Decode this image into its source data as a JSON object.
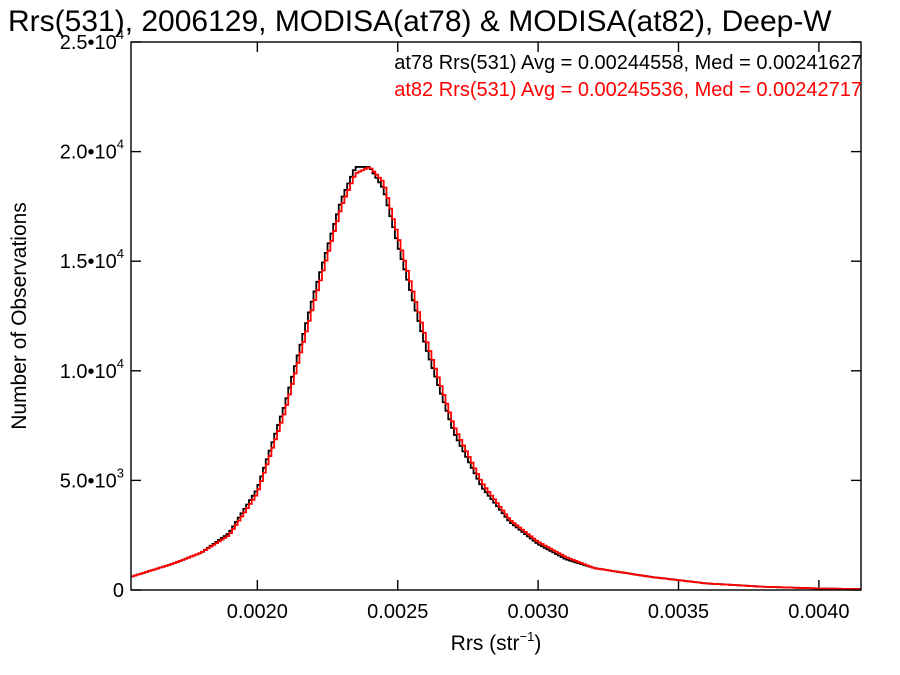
{
  "chart_data": {
    "type": "line",
    "title": "Rrs(531), 2006129, MODISA(at78) & MODISA(at82), Deep-W",
    "xlabel": {
      "main": "Rrs (str",
      "sup": "−1",
      "close": ")"
    },
    "ylabel": "Number of Observations",
    "xlim": [
      0.00155,
      0.00415
    ],
    "ylim": [
      0,
      25000
    ],
    "x_ticks": [
      {
        "value": 0.002,
        "label": "0.0020"
      },
      {
        "value": 0.0025,
        "label": "0.0025"
      },
      {
        "value": 0.003,
        "label": "0.0030"
      },
      {
        "value": 0.0035,
        "label": "0.0035"
      },
      {
        "value": 0.004,
        "label": "0.0040"
      }
    ],
    "y_ticks": [
      {
        "value": 0,
        "mantissa": "0",
        "exponent": ""
      },
      {
        "value": 5000,
        "mantissa": "5.0•10",
        "exponent": "3"
      },
      {
        "value": 10000,
        "mantissa": "1.0•10",
        "exponent": "4"
      },
      {
        "value": 15000,
        "mantissa": "1.5•10",
        "exponent": "4"
      },
      {
        "value": 20000,
        "mantissa": "2.0•10",
        "exponent": "4"
      },
      {
        "value": 25000,
        "mantissa": "2.5•10",
        "exponent": "4"
      }
    ],
    "grid": false,
    "legend_position": "top-right",
    "series": [
      {
        "name": "at78",
        "legend_text": "at78 Rrs(531) Avg = 0.00244558, Med = 0.00241627",
        "color": "#000000",
        "x": [
          0.00155,
          0.0017,
          0.0018,
          0.0019,
          0.002,
          0.0021,
          0.0022,
          0.0023,
          0.00235,
          0.0024,
          0.00245,
          0.0025,
          0.0026,
          0.0027,
          0.0028,
          0.0029,
          0.003,
          0.0031,
          0.0032,
          0.0034,
          0.0036,
          0.0038,
          0.004,
          0.00415
        ],
        "y": [
          600,
          1200,
          1700,
          2600,
          4600,
          8500,
          13400,
          17800,
          19300,
          19300,
          18300,
          15800,
          11100,
          7200,
          4700,
          3100,
          2100,
          1400,
          1000,
          600,
          300,
          150,
          70,
          40
        ]
      },
      {
        "name": "at82",
        "legend_text": "at82 Rrs(531) Avg = 0.00245536, Med = 0.00242717",
        "color": "#ff0000",
        "x": [
          0.00155,
          0.0017,
          0.0018,
          0.0019,
          0.002,
          0.0021,
          0.0022,
          0.0023,
          0.00235,
          0.0024,
          0.00245,
          0.0025,
          0.0026,
          0.0027,
          0.0028,
          0.0029,
          0.003,
          0.0031,
          0.0032,
          0.0034,
          0.0036,
          0.0038,
          0.004,
          0.00415
        ],
        "y": [
          600,
          1200,
          1700,
          2500,
          4400,
          8200,
          13000,
          17500,
          19000,
          19300,
          18600,
          16200,
          11500,
          7500,
          4900,
          3200,
          2200,
          1500,
          1000,
          600,
          300,
          150,
          70,
          40
        ]
      }
    ]
  }
}
